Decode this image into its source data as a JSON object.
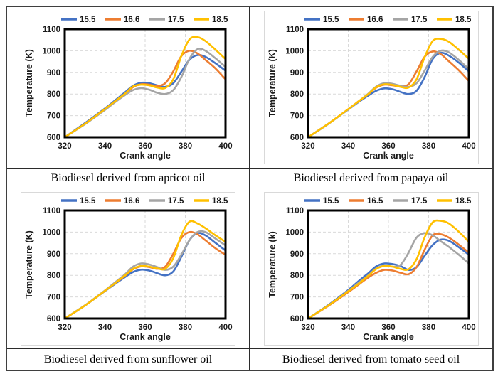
{
  "page": {
    "background": "#ffffff",
    "table_border_color": "#3f3f3f",
    "grid_color": "#d9d9d9",
    "axis_color": "#000000",
    "tick_color": "#1a1a1a"
  },
  "chart_data": [
    {
      "type": "line",
      "caption": "Biodiesel derived from apricot oil",
      "xlabel": "Crank angle",
      "ylabel": "Temperature (K)",
      "xlim": [
        320,
        400
      ],
      "ylim": [
        600,
        1100
      ],
      "xticks": [
        320,
        340,
        360,
        380,
        400
      ],
      "yticks": [
        600,
        700,
        800,
        900,
        1000,
        1100
      ],
      "grid": true,
      "legend_position": "top",
      "x": [
        320,
        330,
        340,
        345,
        350,
        354,
        358,
        362,
        366,
        370,
        374,
        378,
        382,
        386,
        390,
        395,
        400
      ],
      "series": [
        {
          "name": "15.5",
          "color": "#4472C4",
          "values": [
            600,
            665,
            733,
            770,
            808,
            838,
            852,
            850,
            840,
            833,
            850,
            903,
            958,
            980,
            972,
            942,
            908
          ]
        },
        {
          "name": "16.6",
          "color": "#ED7D31",
          "values": [
            600,
            662,
            730,
            766,
            800,
            832,
            845,
            843,
            837,
            850,
            905,
            975,
            1000,
            988,
            958,
            918,
            868
          ]
        },
        {
          "name": "17.5",
          "color": "#A5A5A5",
          "values": [
            600,
            660,
            726,
            762,
            795,
            818,
            827,
            820,
            806,
            800,
            818,
            878,
            962,
            1007,
            1000,
            965,
            925
          ]
        },
        {
          "name": "18.5",
          "color": "#FFC000",
          "values": [
            600,
            662,
            730,
            766,
            802,
            835,
            843,
            840,
            830,
            828,
            868,
            975,
            1052,
            1063,
            1045,
            1005,
            962
          ]
        }
      ]
    },
    {
      "type": "line",
      "caption": "Biodiesel derived from papaya oil",
      "xlabel": "Crank angle",
      "ylabel": "Temperature (K)",
      "xlim": [
        320,
        400
      ],
      "ylim": [
        600,
        1100
      ],
      "xticks": [
        320,
        340,
        360,
        380,
        400
      ],
      "yticks": [
        600,
        700,
        800,
        900,
        1000,
        1100
      ],
      "grid": true,
      "legend_position": "top",
      "x": [
        320,
        330,
        340,
        345,
        350,
        354,
        358,
        362,
        366,
        370,
        374,
        378,
        382,
        386,
        390,
        395,
        400
      ],
      "series": [
        {
          "name": "15.5",
          "color": "#4472C4",
          "values": [
            600,
            662,
            728,
            762,
            793,
            815,
            826,
            822,
            810,
            800,
            815,
            878,
            962,
            990,
            978,
            945,
            905
          ]
        },
        {
          "name": "16.6",
          "color": "#ED7D31",
          "values": [
            600,
            662,
            730,
            765,
            800,
            830,
            843,
            840,
            835,
            845,
            905,
            972,
            997,
            985,
            952,
            910,
            860
          ]
        },
        {
          "name": "17.5",
          "color": "#A5A5A5",
          "values": [
            600,
            661,
            729,
            764,
            802,
            835,
            850,
            847,
            838,
            833,
            850,
            908,
            972,
            1000,
            993,
            958,
            915
          ]
        },
        {
          "name": "18.5",
          "color": "#FFC000",
          "values": [
            600,
            662,
            730,
            765,
            800,
            832,
            845,
            842,
            833,
            830,
            868,
            970,
            1045,
            1055,
            1042,
            1005,
            963
          ]
        }
      ]
    },
    {
      "type": "line",
      "caption": "Biodiesel derived from sunflower oil",
      "xlabel": "Crank angle",
      "ylabel": "Temperature (K)",
      "xlim": [
        320,
        400
      ],
      "ylim": [
        600,
        1100
      ],
      "xticks": [
        320,
        340,
        360,
        380,
        400
      ],
      "yticks": [
        600,
        700,
        800,
        900,
        1000,
        1100
      ],
      "grid": true,
      "legend_position": "top",
      "x": [
        320,
        330,
        340,
        345,
        350,
        354,
        358,
        362,
        366,
        370,
        374,
        378,
        382,
        386,
        390,
        395,
        400
      ],
      "series": [
        {
          "name": "15.5",
          "color": "#4472C4",
          "values": [
            600,
            660,
            727,
            760,
            792,
            815,
            826,
            822,
            810,
            800,
            818,
            885,
            962,
            995,
            985,
            950,
            915
          ]
        },
        {
          "name": "16.6",
          "color": "#ED7D31",
          "values": [
            600,
            660,
            728,
            763,
            798,
            828,
            841,
            838,
            830,
            840,
            900,
            972,
            1000,
            990,
            962,
            925,
            895
          ]
        },
        {
          "name": "17.5",
          "color": "#A5A5A5",
          "values": [
            600,
            661,
            730,
            767,
            805,
            840,
            855,
            850,
            838,
            825,
            840,
            895,
            962,
            1000,
            1000,
            970,
            938
          ]
        },
        {
          "name": "18.5",
          "color": "#FFC000",
          "values": [
            600,
            660,
            728,
            763,
            800,
            830,
            843,
            840,
            832,
            830,
            880,
            985,
            1048,
            1040,
            1018,
            985,
            955
          ]
        }
      ]
    },
    {
      "type": "line",
      "caption": "Biodiesel derived from tomato seed oil",
      "xlabel": "Crank angle",
      "ylabel": "Temperature (k)",
      "xlim": [
        320,
        400
      ],
      "ylim": [
        600,
        1100
      ],
      "xticks": [
        320,
        340,
        360,
        380,
        400
      ],
      "yticks": [
        600,
        700,
        800,
        900,
        1000,
        1100
      ],
      "grid": true,
      "legend_position": "top",
      "x": [
        320,
        330,
        340,
        345,
        350,
        354,
        358,
        362,
        366,
        370,
        374,
        378,
        382,
        386,
        390,
        395,
        400
      ],
      "series": [
        {
          "name": "15.5",
          "color": "#4472C4",
          "values": [
            600,
            662,
            732,
            772,
            810,
            842,
            855,
            852,
            843,
            825,
            838,
            890,
            940,
            965,
            960,
            930,
            895
          ]
        },
        {
          "name": "16.5",
          "color": "#ED7D31",
          "values": [
            600,
            658,
            722,
            756,
            790,
            812,
            825,
            822,
            812,
            805,
            838,
            918,
            985,
            990,
            975,
            942,
            905
          ]
        },
        {
          "name": "17.5",
          "color": "#A5A5A5",
          "values": [
            600,
            660,
            728,
            764,
            800,
            832,
            845,
            840,
            848,
            905,
            975,
            995,
            985,
            958,
            932,
            895,
            855
          ]
        },
        {
          "name": "18.5",
          "color": "#FFC000",
          "values": [
            600,
            660,
            726,
            760,
            798,
            830,
            843,
            840,
            830,
            828,
            875,
            975,
            1045,
            1052,
            1040,
            1002,
            955
          ]
        }
      ]
    }
  ]
}
